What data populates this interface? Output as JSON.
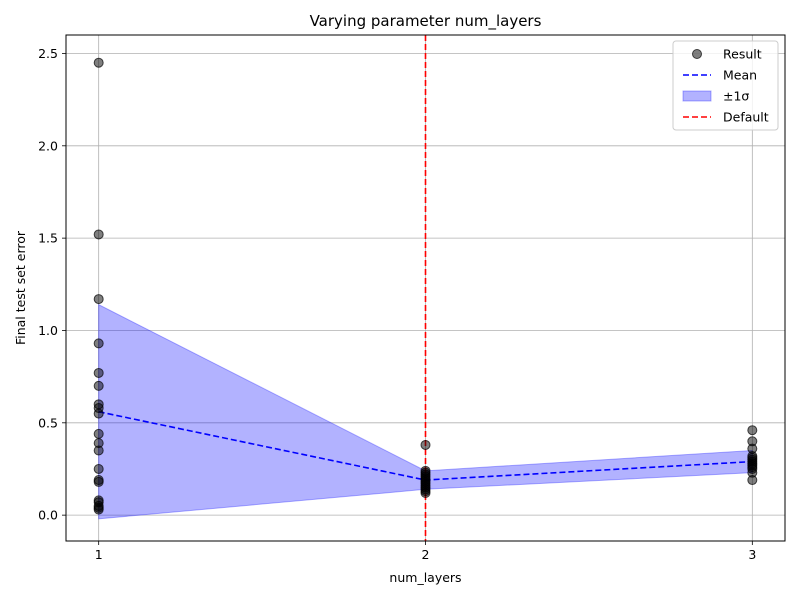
{
  "chart_data": {
    "type": "scatter",
    "title": "Varying parameter num_layers",
    "xlabel": "num_layers",
    "ylabel": "Final test set error",
    "xlim": [
      0.9,
      3.1
    ],
    "ylim": [
      -0.14,
      2.6
    ],
    "xticks": [
      1,
      2,
      3
    ],
    "xtick_labels": [
      "1",
      "2",
      "3"
    ],
    "yticks": [
      0.0,
      0.5,
      1.0,
      1.5,
      2.0,
      2.5
    ],
    "ytick_labels": [
      "0.0",
      "0.5",
      "1.0",
      "1.5",
      "2.0",
      "2.5"
    ],
    "grid": true,
    "legend_position": "top-right",
    "series": [
      {
        "name": "Result",
        "kind": "scatter",
        "color": "#000000",
        "points": [
          [
            1,
            2.45
          ],
          [
            1,
            1.52
          ],
          [
            1,
            1.17
          ],
          [
            1,
            0.93
          ],
          [
            1,
            0.77
          ],
          [
            1,
            0.7
          ],
          [
            1,
            0.6
          ],
          [
            1,
            0.58
          ],
          [
            1,
            0.55
          ],
          [
            1,
            0.44
          ],
          [
            1,
            0.39
          ],
          [
            1,
            0.35
          ],
          [
            1,
            0.25
          ],
          [
            1,
            0.19
          ],
          [
            1,
            0.18
          ],
          [
            1,
            0.08
          ],
          [
            1,
            0.07
          ],
          [
            1,
            0.05
          ],
          [
            1,
            0.04
          ],
          [
            1,
            0.03
          ],
          [
            2,
            0.38
          ],
          [
            2,
            0.24
          ],
          [
            2,
            0.23
          ],
          [
            2,
            0.22
          ],
          [
            2,
            0.21
          ],
          [
            2,
            0.2
          ],
          [
            2,
            0.19
          ],
          [
            2,
            0.18
          ],
          [
            2,
            0.17
          ],
          [
            2,
            0.16
          ],
          [
            2,
            0.15
          ],
          [
            2,
            0.14
          ],
          [
            2,
            0.13
          ],
          [
            2,
            0.12
          ],
          [
            3,
            0.46
          ],
          [
            3,
            0.4
          ],
          [
            3,
            0.36
          ],
          [
            3,
            0.32
          ],
          [
            3,
            0.31
          ],
          [
            3,
            0.3
          ],
          [
            3,
            0.29
          ],
          [
            3,
            0.28
          ],
          [
            3,
            0.27
          ],
          [
            3,
            0.26
          ],
          [
            3,
            0.25
          ],
          [
            3,
            0.23
          ],
          [
            3,
            0.19
          ]
        ]
      },
      {
        "name": "Mean",
        "kind": "line",
        "color": "#0000ff",
        "dash": "dashed",
        "x": [
          1,
          2,
          3
        ],
        "values": [
          0.56,
          0.19,
          0.29
        ]
      },
      {
        "name": "±1σ",
        "kind": "band",
        "color": "#0000ff",
        "x": [
          1,
          2,
          3
        ],
        "lower": [
          -0.02,
          0.14,
          0.23
        ],
        "upper": [
          1.14,
          0.24,
          0.35
        ]
      },
      {
        "name": "Default",
        "kind": "vline",
        "color": "#ff0000",
        "dash": "dashed",
        "x": 2
      }
    ]
  }
}
